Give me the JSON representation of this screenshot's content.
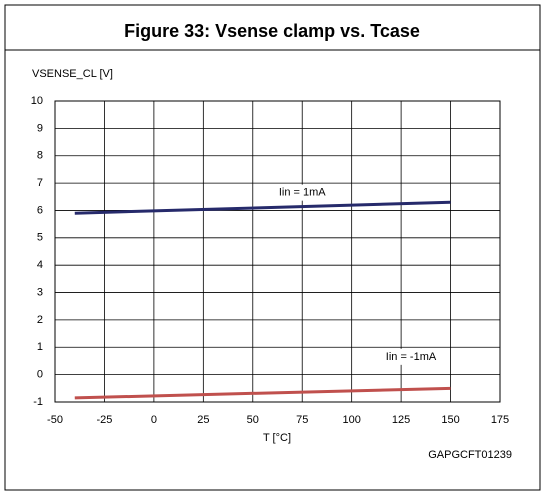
{
  "chart_data": {
    "type": "line",
    "title": "Figure 33: Vsense clamp vs. Tcase",
    "y_label": "VSENSE_CL [V]",
    "x_label": "T [°C]",
    "code": "GAPGCFT01239",
    "x": [
      -40,
      150
    ],
    "series": [
      {
        "name": "Iin = 1mA",
        "color": "#262a6b",
        "values": [
          5.9,
          6.3
        ]
      },
      {
        "name": "Iin = -1mA",
        "color": "#c0504d",
        "values": [
          -0.85,
          -0.5
        ]
      }
    ],
    "xlim": [
      -50,
      175
    ],
    "xticks": [
      -50,
      -25,
      0,
      25,
      50,
      75,
      100,
      125,
      150,
      175
    ],
    "ylim": [
      -1,
      10
    ],
    "yticks": [
      -1,
      0,
      1,
      2,
      3,
      4,
      5,
      6,
      7,
      8,
      9,
      10
    ],
    "grid": true
  }
}
